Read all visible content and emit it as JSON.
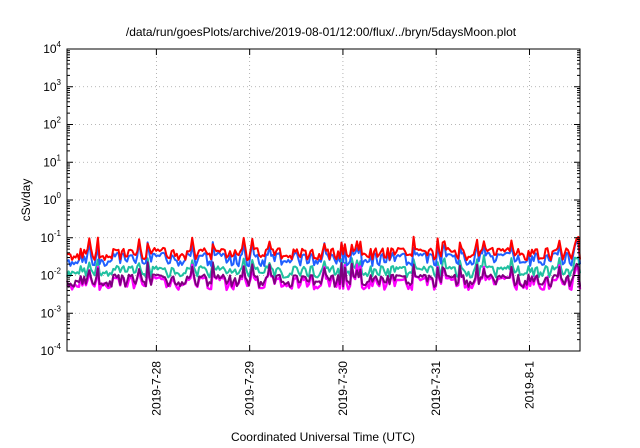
{
  "chart_data": {
    "type": "line",
    "title": "/data/run/goesPlots/archive/2019-08-01/12:00/flux/../bryn/5daysMoon.plot",
    "xlabel": "Coordinated Universal Time (UTC)",
    "ylabel": "cSv/day",
    "yscale": "log",
    "ylim": [
      0.0001,
      10000
    ],
    "ytick_labels": [
      {
        "base": "10",
        "exp": "4"
      },
      {
        "base": "10",
        "exp": "3"
      },
      {
        "base": "10",
        "exp": "2"
      },
      {
        "base": "10",
        "exp": "1"
      },
      {
        "base": "10",
        "exp": "0"
      },
      {
        "base": "10",
        "exp": "-1"
      },
      {
        "base": "10",
        "exp": "-2"
      },
      {
        "base": "10",
        "exp": "-3"
      },
      {
        "base": "10",
        "exp": "-4"
      }
    ],
    "xlim": [
      "2019-07-27T01:00",
      "2019-08-01T13:00"
    ],
    "xticks": [
      "2019-07-28",
      "2019-07-29",
      "2019-07-30",
      "2019-07-31",
      "2019-08-01"
    ],
    "xtick_labels": [
      "2019-7-28",
      "2019-7-29",
      "2019-7-30",
      "2019-7-31",
      "2019-8-1"
    ],
    "grid": true,
    "series_colors": [
      "#ff0000",
      "#2060ff",
      "#20c0a0",
      "#800080",
      "#ff00ff"
    ],
    "series_levels": [
      {
        "base": 0.048,
        "dip": 0.032,
        "spike": 0.085
      },
      {
        "base": 0.036,
        "dip": 0.022,
        "spike": 0.065
      },
      {
        "base": 0.016,
        "dip": 0.011,
        "spike": 0.028
      },
      {
        "base": 0.0095,
        "dip": 0.0062,
        "spike": 0.018
      },
      {
        "base": 0.0085,
        "dip": 0.0052,
        "spike": 0.016
      }
    ]
  }
}
